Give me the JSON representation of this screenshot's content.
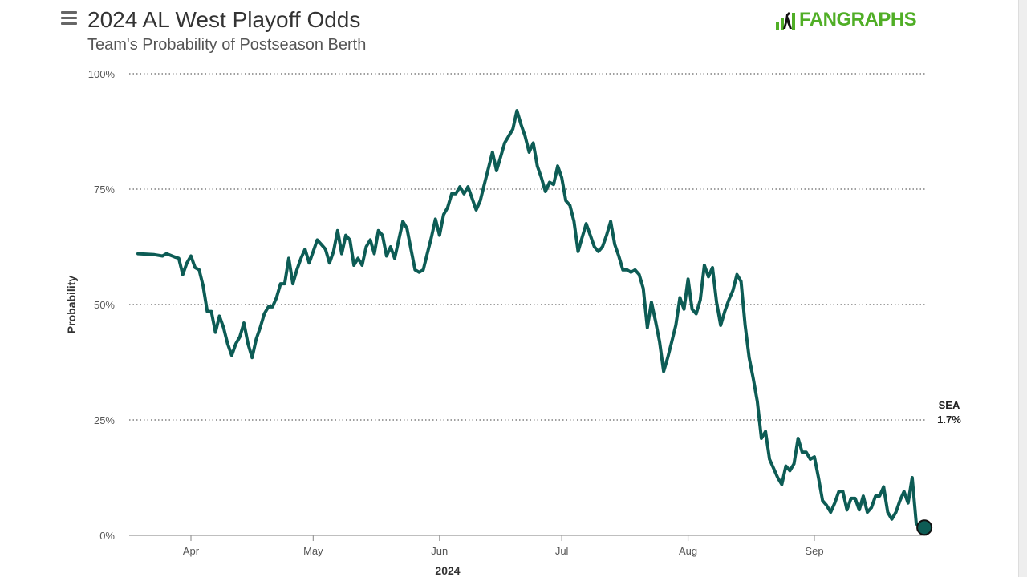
{
  "header": {
    "title": "2024 AL West Playoff Odds",
    "subtitle": "Team's Probability of Postseason Berth",
    "logo_text": "FANGRAPHS",
    "menu_icon": "hamburger-menu-icon"
  },
  "colors": {
    "series": "#0d5c55",
    "title": "#333333",
    "subtitle": "#555555",
    "grid": "#666666",
    "axis_text": "#555555",
    "logo": "#50ae26"
  },
  "chart_data": {
    "type": "line",
    "title": "2024 AL West Playoff Odds",
    "subtitle": "Team's Probability of Postseason Berth",
    "xlabel": "2024",
    "ylabel": "Probability",
    "ylim": [
      0,
      100
    ],
    "xlim_days": [
      -13,
      180
    ],
    "y_ticks": [
      0,
      25,
      50,
      75,
      100
    ],
    "y_tick_labels": [
      "0%",
      "25%",
      "50%",
      "75%",
      "100%"
    ],
    "x_ticks": [
      {
        "label": "Apr",
        "day": 0
      },
      {
        "label": "May",
        "day": 30
      },
      {
        "label": "Jun",
        "day": 61
      },
      {
        "label": "Jul",
        "day": 91
      },
      {
        "label": "Aug",
        "day": 122
      },
      {
        "label": "Sep",
        "day": 153
      }
    ],
    "grid": true,
    "x_unit": "days since Apr 1, 2024",
    "series": [
      {
        "name": "SEA",
        "end_label": "SEA",
        "end_value_label": "1.7%",
        "points": [
          [
            -13,
            61
          ],
          [
            -9,
            60.8
          ],
          [
            -7,
            60.5
          ],
          [
            -6,
            61
          ],
          [
            -4,
            60.3
          ],
          [
            -3,
            60
          ],
          [
            -2,
            56.5
          ],
          [
            -1,
            59
          ],
          [
            0,
            60.5
          ],
          [
            1,
            58
          ],
          [
            2,
            57.5
          ],
          [
            3,
            54
          ],
          [
            4,
            48.5
          ],
          [
            5,
            48.5
          ],
          [
            6,
            44
          ],
          [
            7,
            47.5
          ],
          [
            8,
            45
          ],
          [
            9,
            41.5
          ],
          [
            10,
            39
          ],
          [
            11,
            41.5
          ],
          [
            12,
            43
          ],
          [
            13,
            46
          ],
          [
            14,
            41.5
          ],
          [
            15,
            38.5
          ],
          [
            16,
            42.5
          ],
          [
            17,
            45
          ],
          [
            18,
            48
          ],
          [
            19,
            49.5
          ],
          [
            20,
            49.5
          ],
          [
            21,
            51.5
          ],
          [
            22,
            54.5
          ],
          [
            23,
            54.5
          ],
          [
            24,
            60
          ],
          [
            25,
            54.5
          ],
          [
            26,
            57.5
          ],
          [
            27,
            60
          ],
          [
            28,
            62
          ],
          [
            29,
            59
          ],
          [
            30,
            61.5
          ],
          [
            31,
            64
          ],
          [
            32,
            63
          ],
          [
            33,
            62
          ],
          [
            34,
            59
          ],
          [
            35,
            61.5
          ],
          [
            36,
            66
          ],
          [
            37,
            61
          ],
          [
            38,
            65
          ],
          [
            39,
            64
          ],
          [
            40,
            58.5
          ],
          [
            41,
            60
          ],
          [
            42,
            58.5
          ],
          [
            43,
            62.5
          ],
          [
            44,
            64
          ],
          [
            45,
            61
          ],
          [
            46,
            66
          ],
          [
            47,
            65
          ],
          [
            48,
            60.5
          ],
          [
            49,
            62.5
          ],
          [
            50,
            60
          ],
          [
            52,
            68
          ],
          [
            53,
            66.5
          ],
          [
            54,
            62
          ],
          [
            55,
            57.5
          ],
          [
            56,
            57
          ],
          [
            57,
            57.5
          ],
          [
            58,
            61
          ],
          [
            59,
            64.5
          ],
          [
            60,
            68.5
          ],
          [
            61,
            65
          ],
          [
            62,
            69.5
          ],
          [
            63,
            71
          ],
          [
            64,
            74
          ],
          [
            65,
            74
          ],
          [
            66,
            75.5
          ],
          [
            67,
            74
          ],
          [
            68,
            75.5
          ],
          [
            69,
            73
          ],
          [
            70,
            70.5
          ],
          [
            71,
            72.5
          ],
          [
            72,
            76
          ],
          [
            73,
            79.5
          ],
          [
            74,
            83
          ],
          [
            75,
            79
          ],
          [
            76,
            82
          ],
          [
            77,
            85
          ],
          [
            78,
            86.5
          ],
          [
            79,
            88
          ],
          [
            80,
            92
          ],
          [
            81,
            89
          ],
          [
            82,
            86.5
          ],
          [
            83,
            83
          ],
          [
            84,
            85
          ],
          [
            85,
            80
          ],
          [
            86,
            77.5
          ],
          [
            87,
            74.5
          ],
          [
            88,
            76.5
          ],
          [
            89,
            76
          ],
          [
            90,
            80
          ],
          [
            91,
            77.5
          ],
          [
            92,
            72.5
          ],
          [
            93,
            71.5
          ],
          [
            94,
            68
          ],
          [
            95,
            61.5
          ],
          [
            96,
            64.5
          ],
          [
            97,
            67.5
          ],
          [
            98,
            65
          ],
          [
            99,
            62.5
          ],
          [
            100,
            61.5
          ],
          [
            101,
            62.5
          ],
          [
            102,
            65
          ],
          [
            103,
            68
          ],
          [
            104,
            63
          ],
          [
            105,
            60.5
          ],
          [
            106,
            57.5
          ],
          [
            107,
            57.5
          ],
          [
            108,
            57
          ],
          [
            109,
            57.5
          ],
          [
            110,
            56.5
          ],
          [
            111,
            53.5
          ],
          [
            112,
            45
          ],
          [
            113,
            50.5
          ],
          [
            114,
            46.5
          ],
          [
            115,
            42
          ],
          [
            116,
            35.5
          ],
          [
            117,
            38.5
          ],
          [
            118,
            42
          ],
          [
            119,
            45.5
          ],
          [
            120,
            51.5
          ],
          [
            121,
            49
          ],
          [
            122,
            55.5
          ],
          [
            123,
            49
          ],
          [
            124,
            48
          ],
          [
            125,
            51
          ],
          [
            126,
            58.5
          ],
          [
            127,
            56
          ],
          [
            128,
            58
          ],
          [
            129,
            50.5
          ],
          [
            130,
            45.5
          ],
          [
            131,
            48.5
          ],
          [
            132,
            51
          ],
          [
            133,
            53
          ],
          [
            134,
            56.5
          ],
          [
            135,
            55
          ],
          [
            136,
            45.5
          ],
          [
            137,
            38.5
          ],
          [
            138,
            34
          ],
          [
            139,
            29
          ],
          [
            140,
            21
          ],
          [
            141,
            22.5
          ],
          [
            142,
            16.5
          ],
          [
            143,
            14.5
          ],
          [
            144,
            12.5
          ],
          [
            145,
            11
          ],
          [
            146,
            15
          ],
          [
            147,
            14
          ],
          [
            148,
            15.5
          ],
          [
            149,
            21
          ],
          [
            150,
            18
          ],
          [
            151,
            18
          ],
          [
            152,
            16.5
          ],
          [
            153,
            17
          ],
          [
            154,
            12.5
          ],
          [
            155,
            7.5
          ],
          [
            156,
            6.5
          ],
          [
            157,
            5
          ],
          [
            158,
            7
          ],
          [
            159,
            9.5
          ],
          [
            160,
            9.5
          ],
          [
            161,
            5.5
          ],
          [
            162,
            8
          ],
          [
            163,
            8
          ],
          [
            164,
            5.5
          ],
          [
            165,
            8.5
          ],
          [
            166,
            5
          ],
          [
            167,
            6
          ],
          [
            168,
            8.5
          ],
          [
            169,
            8.5
          ],
          [
            170,
            10.5
          ],
          [
            171,
            5
          ],
          [
            172,
            3.5
          ],
          [
            173,
            5
          ],
          [
            174,
            7.5
          ],
          [
            175,
            9.5
          ],
          [
            176,
            7
          ],
          [
            177,
            12.5
          ],
          [
            178,
            2.5
          ],
          [
            179,
            1.8
          ],
          [
            180,
            1.7
          ]
        ]
      }
    ]
  }
}
